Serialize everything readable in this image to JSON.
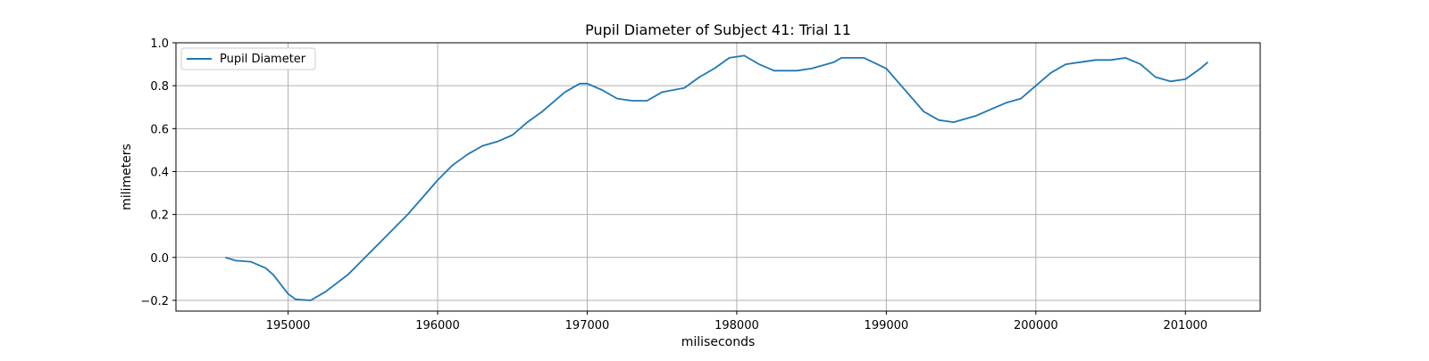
{
  "chart_data": {
    "type": "line",
    "title": "Pupil Diameter of Subject 41: Trial 11",
    "xlabel": "miliseconds",
    "ylabel": "milimeters",
    "xlim": [
      194250,
      201500
    ],
    "ylim": [
      -0.25,
      1.0
    ],
    "xticks": [
      195000,
      196000,
      197000,
      198000,
      199000,
      200000,
      201000
    ],
    "yticks": [
      -0.2,
      0.0,
      0.2,
      0.4,
      0.6,
      0.8,
      1.0
    ],
    "xtick_labels": [
      "195000",
      "196000",
      "197000",
      "198000",
      "199000",
      "200000",
      "201000"
    ],
    "ytick_labels": [
      "−0.2",
      "0.0",
      "0.2",
      "0.4",
      "0.6",
      "0.8",
      "1.0"
    ],
    "grid": true,
    "legend_position": "top-left",
    "series": [
      {
        "name": "Pupil Diameter",
        "color": "#1f77b4",
        "x": [
          194580,
          194650,
          194750,
          194850,
          194900,
          195000,
          195050,
          195150,
          195250,
          195400,
          195500,
          195600,
          195700,
          195800,
          195900,
          196000,
          196100,
          196200,
          196300,
          196400,
          196500,
          196600,
          196700,
          196850,
          196950,
          197000,
          197100,
          197200,
          197300,
          197400,
          197500,
          197650,
          197750,
          197850,
          197950,
          198050,
          198150,
          198250,
          198400,
          198500,
          198650,
          198700,
          198850,
          199000,
          199100,
          199250,
          199350,
          199450,
          199600,
          199700,
          199800,
          199900,
          200000,
          200100,
          200200,
          200300,
          200400,
          200500,
          200600,
          200700,
          200800,
          200900,
          201000,
          201100,
          201150
        ],
        "values": [
          0.0,
          -0.015,
          -0.02,
          -0.05,
          -0.08,
          -0.17,
          -0.195,
          -0.2,
          -0.16,
          -0.08,
          -0.01,
          0.06,
          0.13,
          0.2,
          0.28,
          0.36,
          0.43,
          0.48,
          0.52,
          0.54,
          0.57,
          0.63,
          0.68,
          0.77,
          0.81,
          0.81,
          0.78,
          0.74,
          0.73,
          0.73,
          0.77,
          0.79,
          0.84,
          0.88,
          0.93,
          0.94,
          0.9,
          0.87,
          0.87,
          0.88,
          0.91,
          0.93,
          0.93,
          0.88,
          0.8,
          0.68,
          0.64,
          0.63,
          0.66,
          0.69,
          0.72,
          0.74,
          0.8,
          0.86,
          0.9,
          0.91,
          0.92,
          0.92,
          0.93,
          0.9,
          0.84,
          0.82,
          0.83,
          0.88,
          0.91
        ]
      }
    ]
  }
}
